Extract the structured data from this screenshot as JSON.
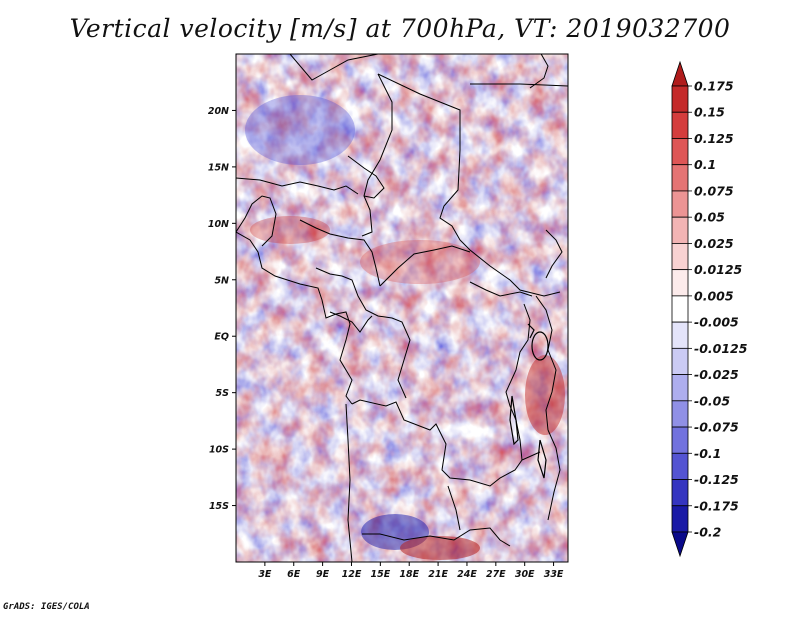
{
  "title": "Vertical velocity [m/s] at 700hPa, VT: 2019032700",
  "credit": "GrADS: IGES/COLA",
  "map": {
    "lat_ticks": [
      "20N",
      "15N",
      "10N",
      "5N",
      "EQ",
      "5S",
      "10S",
      "15S"
    ],
    "lat_values": [
      20,
      15,
      10,
      5,
      0,
      -5,
      -10,
      -15
    ],
    "lon_ticks": [
      "3E",
      "6E",
      "9E",
      "12E",
      "15E",
      "18E",
      "21E",
      "24E",
      "27E",
      "30E",
      "33E"
    ],
    "lon_values": [
      3,
      6,
      9,
      12,
      15,
      18,
      21,
      24,
      27,
      30,
      33
    ],
    "lon_range": [
      0,
      34.5
    ],
    "lat_range": [
      -20,
      25
    ]
  },
  "colorbar": {
    "labels": [
      "0.175",
      "0.15",
      "0.125",
      "0.1",
      "0.075",
      "0.05",
      "0.025",
      "0.0125",
      "0.005",
      "-0.005",
      "-0.0125",
      "-0.025",
      "-0.05",
      "-0.075",
      "-0.1",
      "-0.125",
      "-0.175",
      "-0.2"
    ],
    "colors": [
      "#b01c1c",
      "#c42a2a",
      "#d43d3d",
      "#de5656",
      "#e57474",
      "#ec9494",
      "#f2b4b4",
      "#f8d2d2",
      "#fcebeb",
      "#ffffff",
      "#e4e4fa",
      "#cbcbf4",
      "#aeaeee",
      "#9090e6",
      "#7272de",
      "#5454d2",
      "#3535c0",
      "#1a1aa6",
      "#0a0a8a"
    ]
  },
  "colors": {
    "positive": "#d44a4a",
    "negative": "#5a5ade",
    "background": "#ffffff",
    "border": "#000000"
  }
}
